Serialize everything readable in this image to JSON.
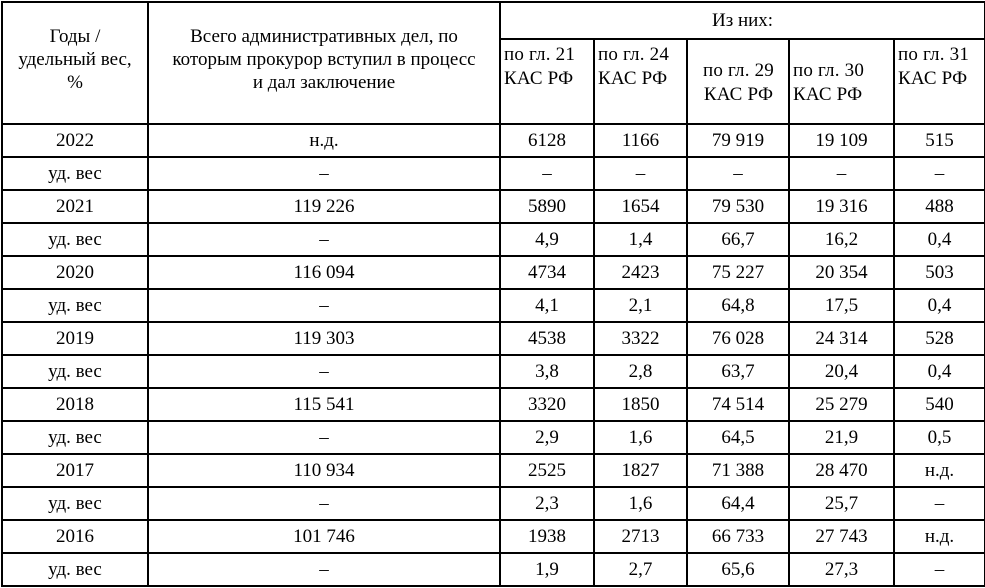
{
  "header": {
    "years_col": "Годы / удельный вес, %",
    "total_col": "Всего административных дел, по которым прокурор вступил в процесс и дал заключение",
    "of_them": "Из них:",
    "sub_cols": [
      "по гл. 21 КАС РФ",
      "по гл. 24 КАС РФ",
      "по гл. 29 КАС РФ",
      "по гл. 30 КАС РФ",
      "по гл. 31 КАС РФ"
    ]
  },
  "rows": [
    [
      "2022",
      "н.д.",
      "6128",
      "1166",
      "79 919",
      "19 109",
      "515"
    ],
    [
      "уд. вес",
      "–",
      "–",
      "–",
      "–",
      "–",
      "–"
    ],
    [
      "2021",
      "119 226",
      "5890",
      "1654",
      "79 530",
      "19 316",
      "488"
    ],
    [
      "уд. вес",
      "–",
      "4,9",
      "1,4",
      "66,7",
      "16,2",
      "0,4"
    ],
    [
      "2020",
      "116 094",
      "4734",
      "2423",
      "75 227",
      "20 354",
      "503"
    ],
    [
      "уд. вес",
      "–",
      "4,1",
      "2,1",
      "64,8",
      "17,5",
      "0,4"
    ],
    [
      "2019",
      "119 303",
      "4538",
      "3322",
      "76 028",
      "24 314",
      "528"
    ],
    [
      "уд. вес",
      "–",
      "3,8",
      "2,8",
      "63,7",
      "20,4",
      "0,4"
    ],
    [
      "2018",
      "115 541",
      "3320",
      "1850",
      "74 514",
      "25 279",
      "540"
    ],
    [
      "уд. вес",
      "–",
      "2,9",
      "1,6",
      "64,5",
      "21,9",
      "0,5"
    ],
    [
      "2017",
      "110 934",
      "2525",
      "1827",
      "71 388",
      "28 470",
      "н.д."
    ],
    [
      "уд. вес",
      "–",
      "2,3",
      "1,6",
      "64,4",
      "25,7",
      "–"
    ],
    [
      "2016",
      "101 746",
      "1938",
      "2713",
      "66 733",
      "27 743",
      "н.д."
    ],
    [
      "уд. вес",
      "–",
      "1,9",
      "2,7",
      "65,6",
      "27,3",
      "–"
    ]
  ]
}
